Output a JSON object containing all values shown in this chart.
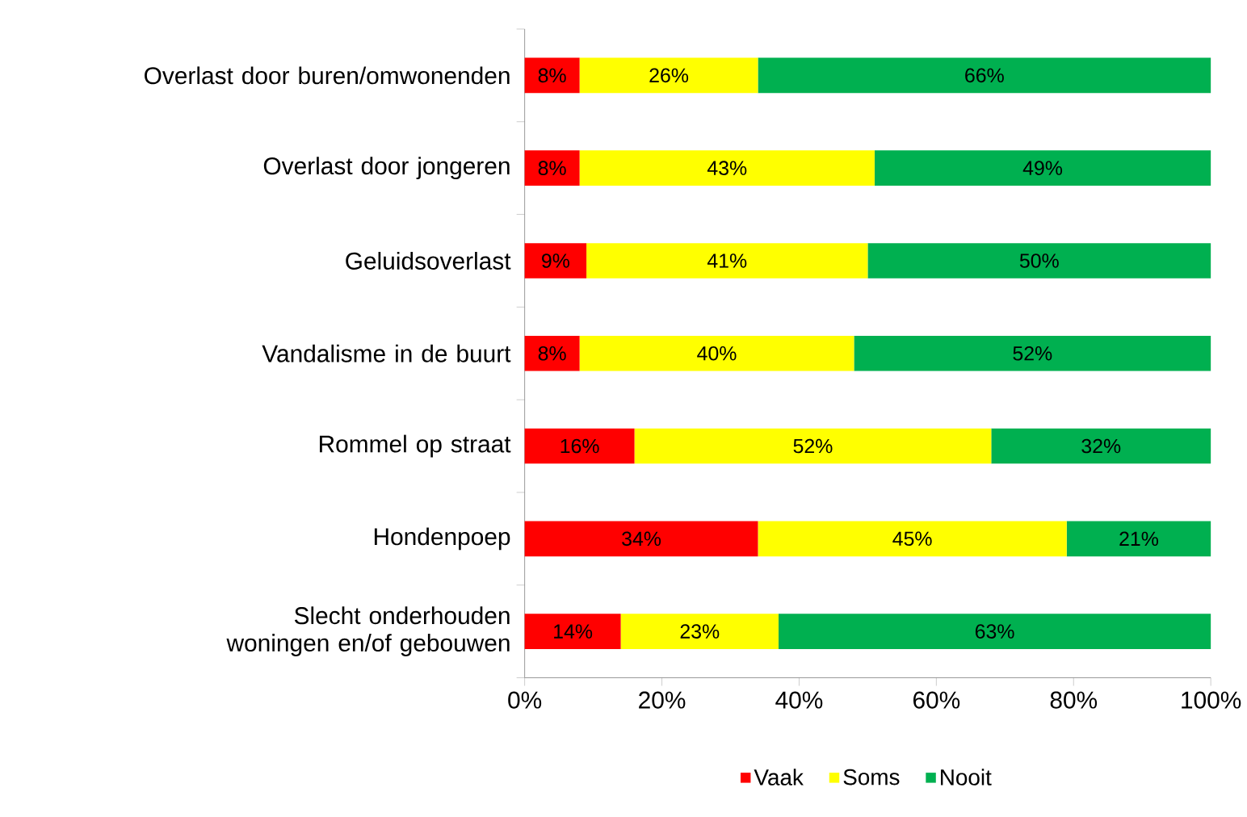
{
  "chart_data": {
    "type": "bar",
    "orientation": "horizontal",
    "stacked": true,
    "categories": [
      "Overlast door buren/omwonenden",
      "Overlast door jongeren",
      "Geluidsoverlast",
      "Vandalisme in de buurt",
      "Rommel op straat",
      "Hondenpoep",
      "Slecht onderhouden woningen en/of gebouwen"
    ],
    "series": [
      {
        "name": "Vaak",
        "color": "#ff0000",
        "values": [
          8,
          8,
          9,
          8,
          16,
          34,
          14
        ],
        "value_labels": [
          "8%",
          "8%",
          "9%",
          "8%",
          "16%",
          "34%",
          "14%"
        ]
      },
      {
        "name": "Soms",
        "color": "#ffff00",
        "values": [
          26,
          43,
          41,
          40,
          52,
          45,
          23
        ],
        "value_labels": [
          "26%",
          "43%",
          "41%",
          "40%",
          "52%",
          "45%",
          "23%"
        ]
      },
      {
        "name": "Nooit",
        "color": "#00b050",
        "values": [
          66,
          49,
          50,
          52,
          32,
          21,
          63
        ],
        "value_labels": [
          "66%",
          "49%",
          "50%",
          "52%",
          "32%",
          "21%",
          "63%"
        ]
      }
    ],
    "xlim": [
      0,
      100
    ],
    "xticks": [
      {
        "value": 0,
        "label": "0%"
      },
      {
        "value": 20,
        "label": "20%"
      },
      {
        "value": 40,
        "label": "40%"
      },
      {
        "value": 60,
        "label": "60%"
      },
      {
        "value": 80,
        "label": "80%"
      },
      {
        "value": 100,
        "label": "100%"
      }
    ],
    "legend": "bottom"
  }
}
